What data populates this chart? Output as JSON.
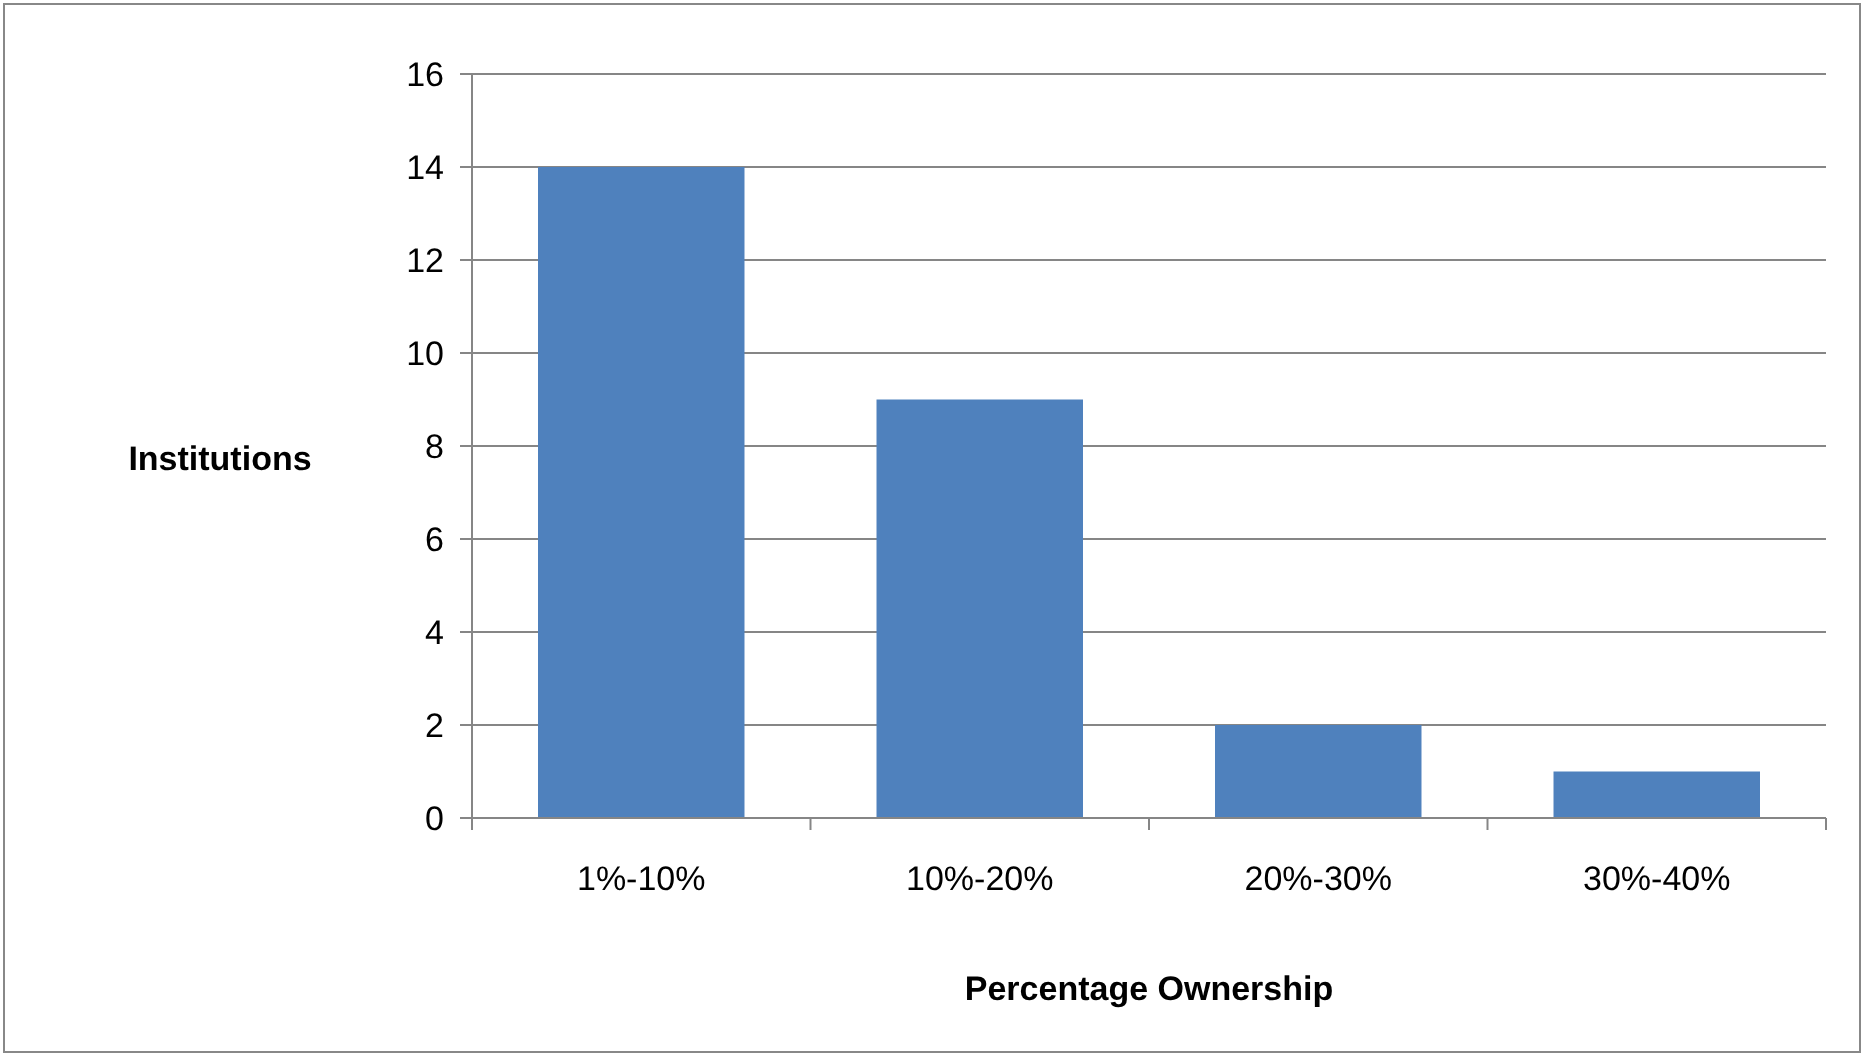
{
  "chart_data": {
    "type": "bar",
    "xlabel": "Percentage Ownership",
    "ylabel": "Institutions",
    "categories": [
      "1%-10%",
      "10%-20%",
      "20%-30%",
      "30%-40%"
    ],
    "values": [
      14,
      9,
      2,
      1
    ],
    "color": "#4f81bd",
    "ylim": [
      0,
      16
    ],
    "yticks": [
      0,
      2,
      4,
      6,
      8,
      10,
      12,
      14,
      16
    ],
    "grid": "y"
  }
}
